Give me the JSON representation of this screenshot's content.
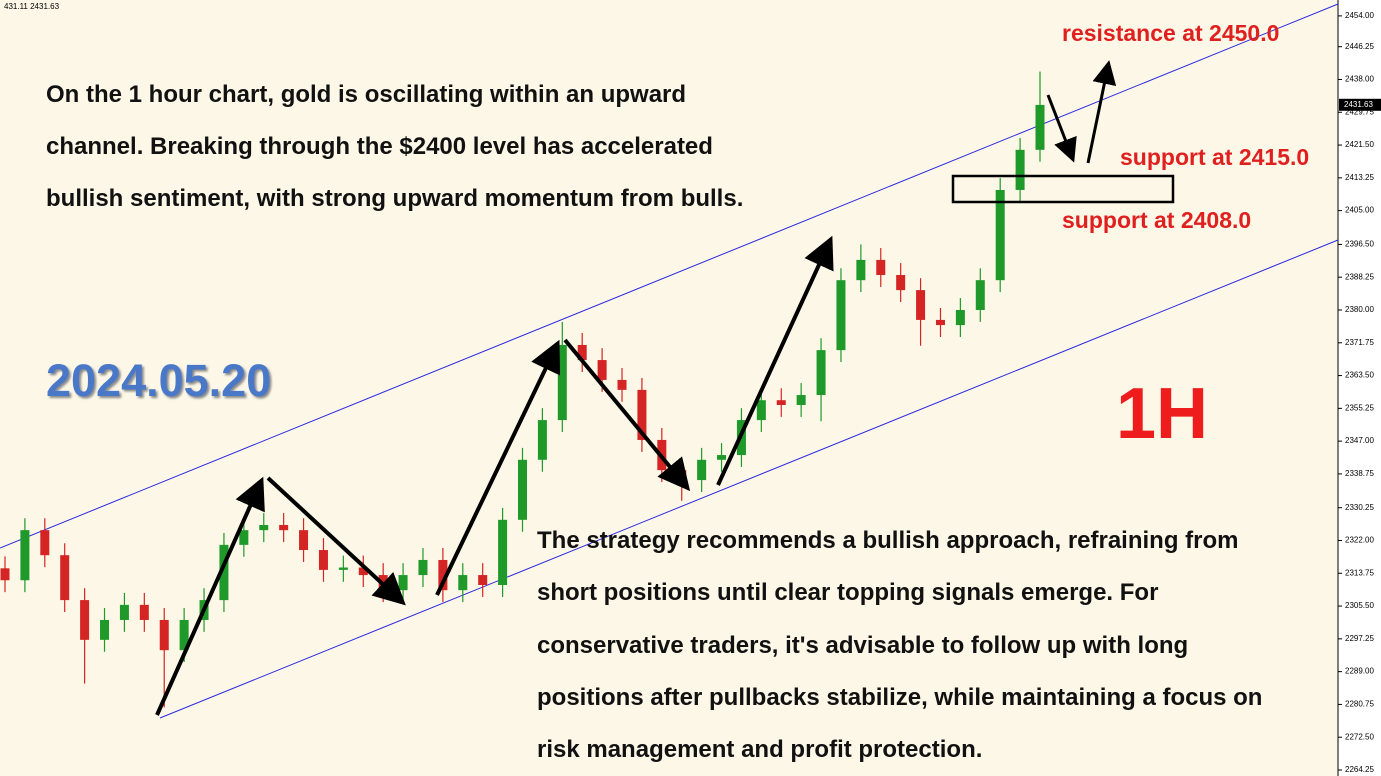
{
  "chart_data": {
    "type": "candlestick",
    "info": "431.11 2431.63",
    "last_price": 2431.63,
    "up_color": "#1f9a2a",
    "down_color": "#d42424",
    "ylim": [
      2262.74,
      2458.0
    ],
    "yticks": [
      {
        "value": 2454.0,
        "label": "2454.00"
      },
      {
        "value": 2446.25,
        "label": "2446.25"
      },
      {
        "value": 2438.0,
        "label": "2438.00"
      },
      {
        "value": 2429.75,
        "label": "2429.75"
      },
      {
        "value": 2421.5,
        "label": "2421.50"
      },
      {
        "value": 2413.25,
        "label": "2413.25"
      },
      {
        "value": 2405.0,
        "label": "2405.00"
      },
      {
        "value": 2396.5,
        "label": "2396.50"
      },
      {
        "value": 2388.25,
        "label": "2388.25"
      },
      {
        "value": 2380.0,
        "label": "2380.00"
      },
      {
        "value": 2371.75,
        "label": "2371.75"
      },
      {
        "value": 2363.5,
        "label": "2363.50"
      },
      {
        "value": 2355.25,
        "label": "2355.25"
      },
      {
        "value": 2347.0,
        "label": "2347.00"
      },
      {
        "value": 2338.75,
        "label": "2338.75"
      },
      {
        "value": 2330.25,
        "label": "2330.25"
      },
      {
        "value": 2322.0,
        "label": "2322.00"
      },
      {
        "value": 2313.75,
        "label": "2313.75"
      },
      {
        "value": 2305.5,
        "label": "2305.50"
      },
      {
        "value": 2297.25,
        "label": "2297.25"
      },
      {
        "value": 2289.0,
        "label": "2289.00"
      },
      {
        "value": 2280.75,
        "label": "2280.75"
      },
      {
        "value": 2272.5,
        "label": "2272.50"
      },
      {
        "value": 2264.25,
        "label": "2264.25"
      }
    ],
    "open": [
      2315.0,
      2312.0,
      2324.6,
      2318.3,
      2307.0,
      2297.0,
      2302.0,
      2305.8,
      2302.0,
      2294.4,
      2302.0,
      2307.0,
      2320.9,
      2324.6,
      2325.9,
      2324.6,
      2319.6,
      2314.6,
      2315.2,
      2313.3,
      2309.5,
      2313.3,
      2317.1,
      2309.5,
      2313.3,
      2310.8,
      2327.2,
      2342.3,
      2352.3,
      2371.2,
      2367.4,
      2362.4,
      2359.9,
      2347.3,
      2339.7,
      2337.2,
      2342.3,
      2343.5,
      2352.3,
      2357.3,
      2356.1,
      2358.6,
      2369.9,
      2387.5,
      2392.6,
      2388.8,
      2385.0,
      2377.5,
      2376.2,
      2380.0,
      2387.5,
      2410.2,
      2420.3
    ],
    "high": [
      2318.0,
      2327.6,
      2327.6,
      2321.3,
      2310.0,
      2305.0,
      2308.8,
      2308.8,
      2305.0,
      2305.0,
      2310.0,
      2323.9,
      2327.6,
      2328.9,
      2328.9,
      2327.6,
      2322.6,
      2318.2,
      2318.2,
      2316.3,
      2316.3,
      2320.1,
      2320.1,
      2316.3,
      2316.3,
      2330.2,
      2345.3,
      2355.3,
      2377.0,
      2374.2,
      2370.4,
      2365.4,
      2362.9,
      2350.3,
      2342.7,
      2345.3,
      2346.5,
      2355.3,
      2360.3,
      2360.3,
      2361.6,
      2372.9,
      2390.5,
      2396.5,
      2395.6,
      2391.8,
      2388.0,
      2380.5,
      2383.0,
      2390.5,
      2413.2,
      2423.3,
      2440.0
    ],
    "low": [
      2309.0,
      2309.0,
      2315.3,
      2304.0,
      2286.0,
      2294.0,
      2299.0,
      2299.0,
      2280.0,
      2291.4,
      2299.0,
      2304.0,
      2317.9,
      2321.6,
      2321.6,
      2316.6,
      2311.6,
      2311.6,
      2310.3,
      2306.5,
      2306.5,
      2310.3,
      2306.5,
      2306.5,
      2307.8,
      2307.8,
      2324.2,
      2339.3,
      2349.3,
      2364.4,
      2359.4,
      2356.9,
      2344.3,
      2336.7,
      2332.0,
      2334.2,
      2339.3,
      2340.5,
      2349.3,
      2353.1,
      2353.1,
      2352.0,
      2366.9,
      2384.5,
      2385.8,
      2382.0,
      2371.0,
      2373.2,
      2373.2,
      2377.0,
      2384.5,
      2407.2,
      2417.3
    ],
    "close": [
      2312.0,
      2324.6,
      2318.3,
      2307.0,
      2297.0,
      2302.0,
      2305.8,
      2302.0,
      2294.4,
      2302.0,
      2307.0,
      2320.9,
      2324.6,
      2325.9,
      2324.6,
      2319.6,
      2314.6,
      2315.2,
      2313.3,
      2309.5,
      2313.3,
      2317.1,
      2309.5,
      2313.3,
      2310.8,
      2327.2,
      2342.3,
      2352.3,
      2371.2,
      2367.4,
      2362.4,
      2359.9,
      2347.3,
      2339.7,
      2337.2,
      2342.3,
      2343.5,
      2352.3,
      2357.3,
      2356.1,
      2358.6,
      2369.9,
      2387.5,
      2392.6,
      2388.8,
      2385.0,
      2377.5,
      2376.2,
      2380.0,
      2387.5,
      2410.2,
      2420.3,
      2431.6
    ],
    "annotations": {
      "date": "2024.05.20",
      "timeframe": "1H",
      "resistance": "resistance at 2450.0",
      "support_upper": "support at 2415.0",
      "support_lower": "support at 2408.0",
      "intro": [
        "On the 1 hour chart, gold is oscillating within an upward",
        "channel. Breaking through the $2400 level has accelerated",
        "bullish sentiment, with strong upward momentum from bulls."
      ],
      "strategy": [
        "The strategy recommends a bullish approach, refraining from",
        "short positions until clear topping signals emerge. For",
        "conservative traders, it's advisable to follow up with long",
        "positions after pullbacks stabilize, while maintaining a focus on",
        "risk management and profit protection."
      ]
    }
  }
}
